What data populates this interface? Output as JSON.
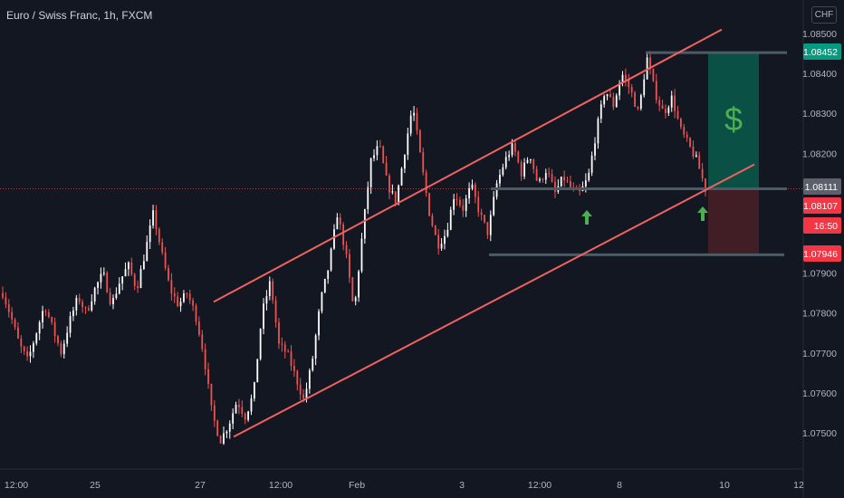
{
  "chart_data": {
    "type": "line",
    "title": "Euro / Swiss Franc, 1h, FXCM",
    "currency": "CHF",
    "candlestick": true,
    "y_ticks": [
      "1.08500",
      "1.08400",
      "1.08300",
      "1.08200",
      "1.07900",
      "1.07800",
      "1.07700",
      "1.07600",
      "1.07500"
    ],
    "x_ticks": [
      "12:00",
      "25",
      "27",
      "12:00",
      "Feb",
      "3",
      "12:00",
      "8",
      "10",
      "12"
    ],
    "price_labels": [
      {
        "text": "1.08452",
        "value": 1.08452,
        "color": "#089981"
      },
      {
        "text": "1.08111",
        "value": 1.08111,
        "color": "#5d606b"
      },
      {
        "text": "1.08107",
        "value": 1.08107,
        "color": "#f23645"
      },
      {
        "text": "16:50",
        "value": 1.08055,
        "color": "#f23645"
      },
      {
        "text": "1.07946",
        "value": 1.07946,
        "color": "#f23645"
      }
    ],
    "channel": {
      "upper": [
        [
          "Jan 27 12:00",
          1.07828
        ],
        [
          "Feb 10 00:00",
          1.0851
        ]
      ],
      "lower": [
        [
          "Jan 28 00:00",
          1.0749
        ],
        [
          "Feb 10 12:00",
          1.08172
        ]
      ]
    },
    "levels": [
      {
        "name": "target",
        "value": 1.08452
      },
      {
        "name": "entry",
        "value": 1.08111
      },
      {
        "name": "stop",
        "value": 1.07946
      }
    ],
    "annotations": [
      {
        "type": "arrow-up",
        "at": "Feb 6"
      },
      {
        "type": "arrow-up",
        "at": "Feb 9"
      },
      {
        "type": "dollar",
        "text": "$"
      }
    ],
    "ohlc_path": [
      1.0785,
      1.0779,
      1.0772,
      1.0768,
      1.0775,
      1.0782,
      1.0776,
      1.077,
      1.0778,
      1.0784,
      1.078,
      1.0786,
      1.079,
      1.0782,
      1.0788,
      1.0792,
      1.0786,
      1.0795,
      1.0805,
      1.0795,
      1.0786,
      1.0782,
      1.0785,
      1.078,
      1.077,
      1.0755,
      1.0748,
      1.0752,
      1.0758,
      1.0754,
      1.076,
      1.078,
      1.0788,
      1.0772,
      1.077,
      1.0764,
      1.0758,
      1.0768,
      1.0783,
      1.0792,
      1.0805,
      1.0795,
      1.078,
      1.08,
      1.0818,
      1.0822,
      1.0812,
      1.0808,
      1.082,
      1.0832,
      1.0818,
      1.0805,
      1.0797,
      1.08,
      1.081,
      1.0806,
      1.0812,
      1.0805,
      1.08,
      1.0812,
      1.0818,
      1.0822,
      1.0815,
      1.082,
      1.0812,
      1.0816,
      1.081,
      1.0814,
      1.0811,
      1.081,
      1.0814,
      1.0826,
      1.0836,
      1.0832,
      1.084,
      1.0836,
      1.083,
      1.0844,
      1.0835,
      1.083,
      1.0834,
      1.0826,
      1.0822,
      1.0818,
      1.0811
    ],
    "colors": {
      "up": "#ffffff",
      "down": "#ef5350",
      "channel": "#f06262",
      "level": "#4b5b66",
      "target_zone": "#0b5a4b",
      "stop_zone": "#4a1f26",
      "arrow": "#4caf50"
    },
    "grid": false
  }
}
